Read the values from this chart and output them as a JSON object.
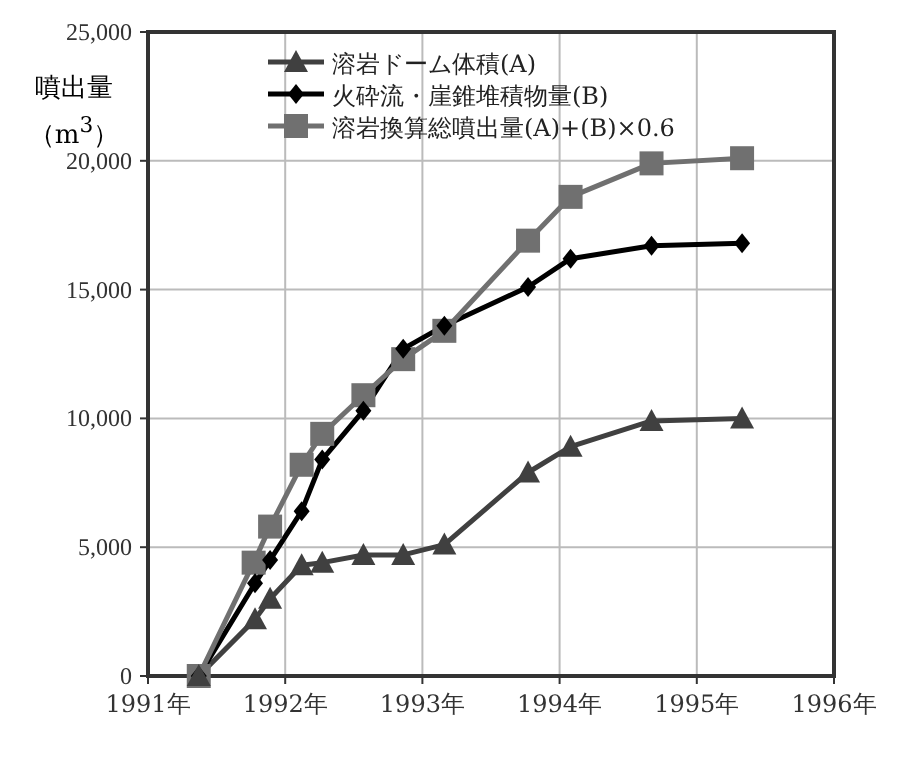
{
  "chart_data": {
    "type": "line",
    "ylabel": "噴出量（m$^{3}$）",
    "xlim": [
      1991,
      1996
    ],
    "xticks": [
      {
        "value": 1991,
        "label": "1991年"
      },
      {
        "value": 1992,
        "label": "1992年"
      },
      {
        "value": 1993,
        "label": "1993年"
      },
      {
        "value": 1994,
        "label": "1994年"
      },
      {
        "value": 1995,
        "label": "1995年"
      },
      {
        "value": 1996,
        "label": "1996年"
      }
    ],
    "ylim": [
      0,
      25000
    ],
    "yticks": [
      {
        "value": 0,
        "label": "0"
      },
      {
        "value": 5000,
        "label": "5,000"
      },
      {
        "value": 10000,
        "label": "10,000"
      },
      {
        "value": 15000,
        "label": "15,000"
      },
      {
        "value": 20000,
        "label": "20,000"
      },
      {
        "value": 25000,
        "label": "25,000"
      }
    ],
    "grid": true,
    "legend": "top left",
    "line_style": "solid",
    "series": [
      {
        "name": "溶岩ドーム体積(A)",
        "color": "#404040",
        "marker": "triangle",
        "x": [
          1991.37,
          1991.78,
          1991.89,
          1992.12,
          1992.27,
          1992.57,
          1992.86,
          1993.16,
          1993.77,
          1994.08,
          1994.67,
          1995.33
        ],
        "values": [
          0,
          2200,
          3000,
          4300,
          4400,
          4700,
          4700,
          5100,
          7900,
          8900,
          9900,
          10000
        ]
      },
      {
        "name": "火砕流・崖錐堆積物量(B)",
        "color": "#000000",
        "marker": "diamond",
        "x": [
          1991.37,
          1991.78,
          1991.89,
          1992.12,
          1992.27,
          1992.57,
          1992.86,
          1993.16,
          1993.77,
          1994.08,
          1994.67,
          1995.33
        ],
        "values": [
          0,
          3600,
          4500,
          6400,
          8400,
          10300,
          12700,
          13600,
          15100,
          16200,
          16700,
          16800
        ]
      },
      {
        "name": "溶岩換算総噴出量(A)+(B)×0.6",
        "color": "#707070",
        "marker": "square",
        "x": [
          1991.37,
          1991.77,
          1991.89,
          1992.12,
          1992.27,
          1992.57,
          1992.86,
          1993.16,
          1993.77,
          1994.08,
          1994.67,
          1995.33
        ],
        "values": [
          0,
          4400,
          5800,
          8200,
          9400,
          10900,
          12300,
          13400,
          16900,
          18600,
          19900,
          20100
        ]
      }
    ]
  }
}
